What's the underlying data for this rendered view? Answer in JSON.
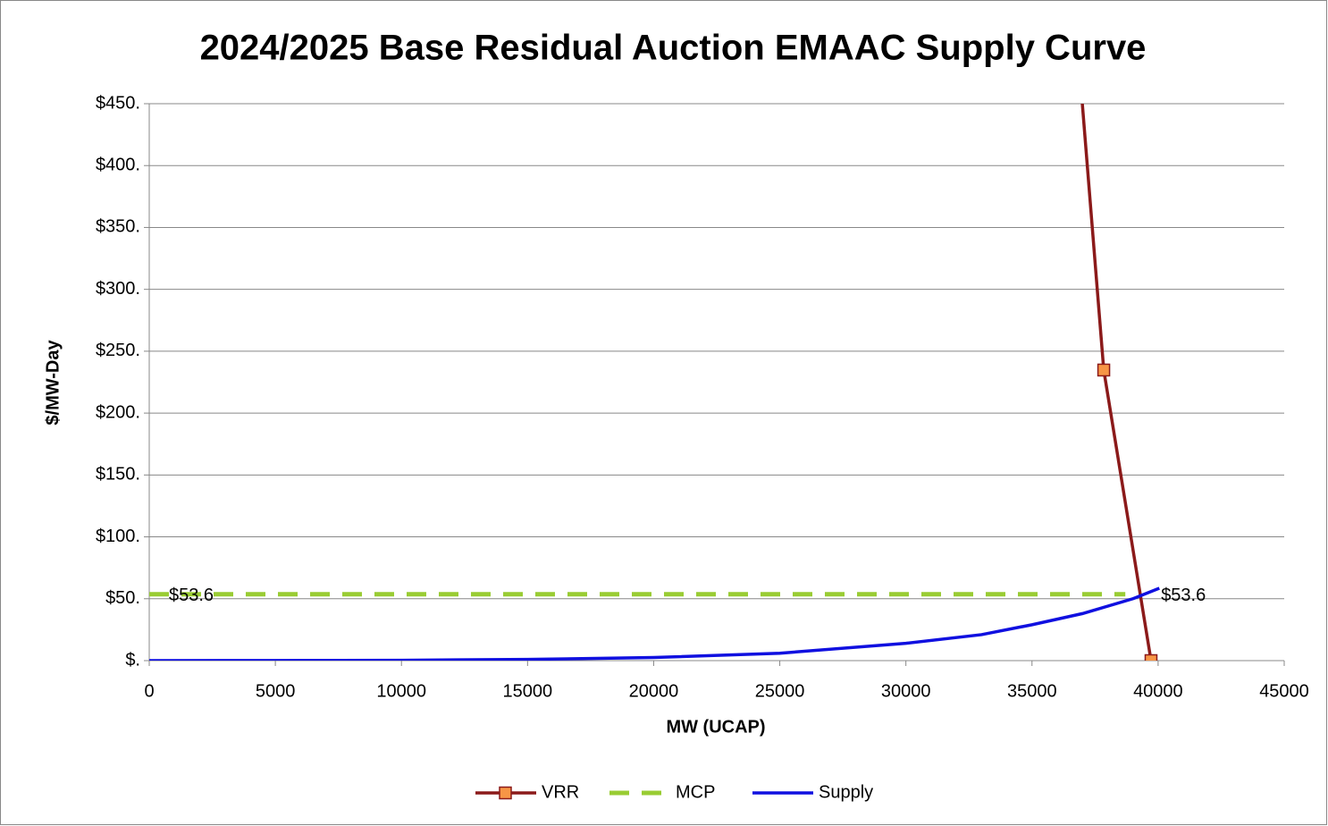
{
  "chart_data": {
    "type": "line",
    "title": "2024/2025 Base Residual Auction EMAAC Supply Curve",
    "x_label": "MW (UCAP)",
    "y_label": "$/MW-Day",
    "xlim": [
      0,
      45000
    ],
    "xticks": [
      0,
      5000,
      10000,
      15000,
      20000,
      25000,
      30000,
      35000,
      40000,
      45000
    ],
    "ylim": [
      0,
      450
    ],
    "yticks": [
      {
        "value": 0,
        "label": "$."
      },
      {
        "value": 50,
        "label": "$50."
      },
      {
        "value": 100,
        "label": "$100."
      },
      {
        "value": 150,
        "label": "$150."
      },
      {
        "value": 200,
        "label": "$200."
      },
      {
        "value": 250,
        "label": "$250."
      },
      {
        "value": 300,
        "label": "$300."
      },
      {
        "value": 350,
        "label": "$350."
      },
      {
        "value": 400,
        "label": "$400."
      },
      {
        "value": 450,
        "label": "$450."
      }
    ],
    "grid": true,
    "legend": "bottom",
    "series": [
      {
        "name": "VRR",
        "color": "#8b1a1a",
        "marker": "square",
        "marker_color": "#f79646",
        "dash": false,
        "x": [
          36600,
          37845,
          39720
        ],
        "values": [
          550,
          234.8,
          0
        ]
      },
      {
        "name": "MCP",
        "color": "#99cc33",
        "dash": true,
        "x": [
          0,
          38700
        ],
        "values": [
          53.6,
          53.6
        ],
        "value_labels": [
          "$53.6",
          "$53.6"
        ]
      },
      {
        "name": "Supply",
        "color": "#1010e0",
        "dash": false,
        "x": [
          0,
          5000,
          10000,
          15000,
          20000,
          25000,
          30000,
          33000,
          35000,
          37000,
          39000,
          40050
        ],
        "values": [
          0,
          0.1,
          0.3,
          1,
          2.5,
          6,
          14,
          21,
          29,
          38,
          50,
          58.5
        ]
      }
    ]
  }
}
